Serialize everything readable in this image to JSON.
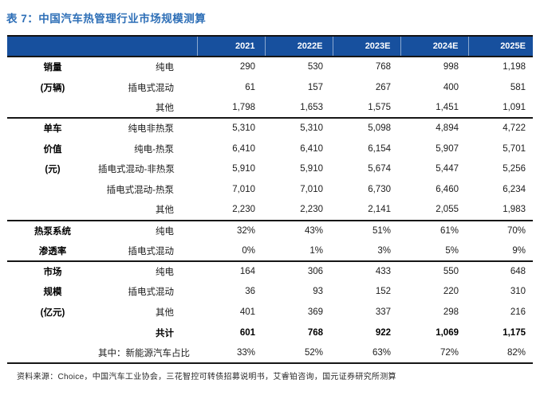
{
  "title": "表 7：中国汽车热管理行业市场规模测算",
  "table": {
    "year_headers": [
      "2021",
      "2022E",
      "2023E",
      "2024E",
      "2025E"
    ],
    "rows": [
      {
        "group": "销量",
        "label": "纯电",
        "values": [
          "290",
          "530",
          "768",
          "998",
          "1,198"
        ],
        "section_start": true,
        "bold": false
      },
      {
        "group": "(万辆)",
        "label": "插电式混动",
        "values": [
          "61",
          "157",
          "267",
          "400",
          "581"
        ],
        "section_start": false,
        "bold": false
      },
      {
        "group": "",
        "label": "其他",
        "values": [
          "1,798",
          "1,653",
          "1,575",
          "1,451",
          "1,091"
        ],
        "section_start": false,
        "bold": false
      },
      {
        "group": "单车",
        "label": "纯电非热泵",
        "values": [
          "5,310",
          "5,310",
          "5,098",
          "4,894",
          "4,722"
        ],
        "section_start": true,
        "bold": false
      },
      {
        "group": "价值",
        "label": "纯电-热泵",
        "values": [
          "6,410",
          "6,410",
          "6,154",
          "5,907",
          "5,701"
        ],
        "section_start": false,
        "bold": false
      },
      {
        "group": "(元)",
        "label": "插电式混动-非热泵",
        "values": [
          "5,910",
          "5,910",
          "5,674",
          "5,447",
          "5,256"
        ],
        "section_start": false,
        "bold": false
      },
      {
        "group": "",
        "label": "插电式混动-热泵",
        "values": [
          "7,010",
          "7,010",
          "6,730",
          "6,460",
          "6,234"
        ],
        "section_start": false,
        "bold": false
      },
      {
        "group": "",
        "label": "其他",
        "values": [
          "2,230",
          "2,230",
          "2,141",
          "2,055",
          "1,983"
        ],
        "section_start": false,
        "bold": false
      },
      {
        "group": "热泵系统",
        "label": "纯电",
        "values": [
          "32%",
          "43%",
          "51%",
          "61%",
          "70%"
        ],
        "section_start": true,
        "bold": false
      },
      {
        "group": "渗透率",
        "label": "插电式混动",
        "values": [
          "0%",
          "1%",
          "3%",
          "5%",
          "9%"
        ],
        "section_start": false,
        "bold": false
      },
      {
        "group": "市场",
        "label": "纯电",
        "values": [
          "164",
          "306",
          "433",
          "550",
          "648"
        ],
        "section_start": true,
        "bold": false
      },
      {
        "group": "规模",
        "label": "插电式混动",
        "values": [
          "36",
          "93",
          "152",
          "220",
          "310"
        ],
        "section_start": false,
        "bold": false
      },
      {
        "group": "(亿元)",
        "label": "其他",
        "values": [
          "401",
          "369",
          "337",
          "298",
          "216"
        ],
        "section_start": false,
        "bold": false
      },
      {
        "group": "",
        "label": "共计",
        "values": [
          "601",
          "768",
          "922",
          "1,069",
          "1,175"
        ],
        "section_start": false,
        "bold": true
      },
      {
        "group": "",
        "label": "其中：新能源汽车占比",
        "values": [
          "33%",
          "52%",
          "63%",
          "72%",
          "82%"
        ],
        "section_start": false,
        "bold": false
      }
    ]
  },
  "footer": "资料来源：Choice，中国汽车工业协会，三花智控可转债招募说明书，艾睿铂咨询，国元证券研究所测算",
  "colors": {
    "header_bg": "#17509E",
    "header_text": "#FFFFFF",
    "title_blue": "#2E6FB7",
    "rule_black": "#161616"
  }
}
